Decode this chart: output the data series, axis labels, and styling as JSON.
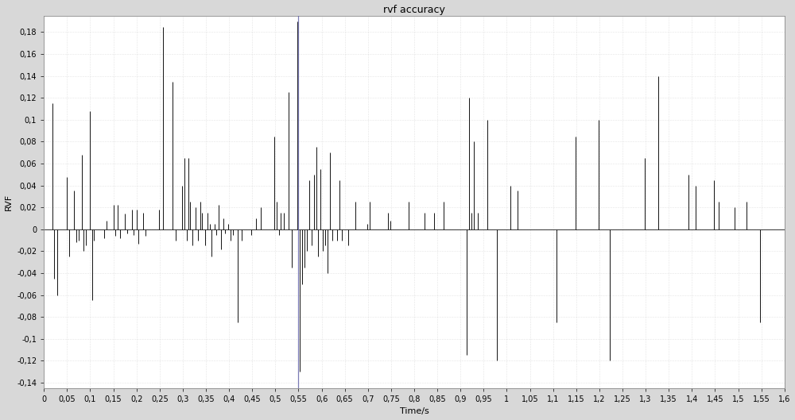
{
  "title": "rvf accuracy",
  "xlabel": "Time/s",
  "ylabel": "RVF",
  "xlim": [
    0,
    1.6
  ],
  "ylim": [
    -0.145,
    0.195
  ],
  "yticks": [
    -0.14,
    -0.12,
    -0.1,
    -0.08,
    -0.06,
    -0.04,
    -0.02,
    0,
    0.02,
    0.04,
    0.06,
    0.08,
    0.1,
    0.12,
    0.14,
    0.16,
    0.18
  ],
  "xticks": [
    0,
    0.05,
    0.1,
    0.15,
    0.2,
    0.25,
    0.3,
    0.35,
    0.4,
    0.45,
    0.5,
    0.55,
    0.6,
    0.65,
    0.7,
    0.75,
    0.8,
    0.85,
    0.9,
    0.95,
    1.0,
    1.05,
    1.1,
    1.15,
    1.2,
    1.25,
    1.3,
    1.35,
    1.4,
    1.45,
    1.5,
    1.55,
    1.6
  ],
  "vline_x": 0.55,
  "vline_color": "#6666aa",
  "line_color": "#111111",
  "bg_color": "#ffffff",
  "outer_bg": "#d8d8d8",
  "grid_color": "#cccccc",
  "title_fontsize": 9,
  "label_fontsize": 8,
  "tick_fontsize": 7,
  "spikes": [
    [
      0.018,
      0.115
    ],
    [
      0.022,
      -0.045
    ],
    [
      0.028,
      -0.06
    ],
    [
      0.05,
      0.048
    ],
    [
      0.055,
      -0.025
    ],
    [
      0.065,
      0.035
    ],
    [
      0.07,
      -0.012
    ],
    [
      0.075,
      -0.01
    ],
    [
      0.082,
      0.068
    ],
    [
      0.086,
      -0.02
    ],
    [
      0.09,
      -0.015
    ],
    [
      0.1,
      0.108
    ],
    [
      0.104,
      -0.065
    ],
    [
      0.108,
      -0.01
    ],
    [
      0.13,
      -0.008
    ],
    [
      0.135,
      0.008
    ],
    [
      0.15,
      0.022
    ],
    [
      0.154,
      -0.006
    ],
    [
      0.16,
      0.022
    ],
    [
      0.164,
      -0.008
    ],
    [
      0.175,
      0.014
    ],
    [
      0.18,
      -0.004
    ],
    [
      0.19,
      0.018
    ],
    [
      0.194,
      -0.005
    ],
    [
      0.2,
      0.018
    ],
    [
      0.204,
      -0.013
    ],
    [
      0.215,
      0.015
    ],
    [
      0.22,
      -0.006
    ],
    [
      0.248,
      0.018
    ],
    [
      0.258,
      0.185
    ],
    [
      0.278,
      0.135
    ],
    [
      0.284,
      -0.01
    ],
    [
      0.298,
      0.04
    ],
    [
      0.304,
      0.065
    ],
    [
      0.308,
      -0.01
    ],
    [
      0.312,
      0.065
    ],
    [
      0.316,
      0.025
    ],
    [
      0.32,
      -0.015
    ],
    [
      0.328,
      0.02
    ],
    [
      0.332,
      -0.01
    ],
    [
      0.338,
      0.025
    ],
    [
      0.342,
      0.015
    ],
    [
      0.348,
      -0.015
    ],
    [
      0.354,
      0.015
    ],
    [
      0.358,
      0.005
    ],
    [
      0.362,
      -0.025
    ],
    [
      0.368,
      0.005
    ],
    [
      0.372,
      -0.005
    ],
    [
      0.378,
      0.022
    ],
    [
      0.382,
      -0.018
    ],
    [
      0.388,
      0.01
    ],
    [
      0.392,
      -0.004
    ],
    [
      0.398,
      0.005
    ],
    [
      0.404,
      -0.01
    ],
    [
      0.408,
      -0.005
    ],
    [
      0.418,
      -0.085
    ],
    [
      0.428,
      -0.01
    ],
    [
      0.448,
      -0.005
    ],
    [
      0.458,
      0.01
    ],
    [
      0.468,
      0.02
    ],
    [
      0.498,
      0.085
    ],
    [
      0.503,
      0.025
    ],
    [
      0.508,
      -0.005
    ],
    [
      0.512,
      0.015
    ],
    [
      0.518,
      0.015
    ],
    [
      0.528,
      0.125
    ],
    [
      0.536,
      -0.035
    ],
    [
      0.548,
      0.19
    ],
    [
      0.553,
      -0.13
    ],
    [
      0.558,
      -0.05
    ],
    [
      0.563,
      -0.035
    ],
    [
      0.568,
      -0.02
    ],
    [
      0.573,
      0.045
    ],
    [
      0.578,
      -0.015
    ],
    [
      0.583,
      0.05
    ],
    [
      0.588,
      0.075
    ],
    [
      0.593,
      -0.025
    ],
    [
      0.598,
      0.055
    ],
    [
      0.603,
      -0.02
    ],
    [
      0.608,
      -0.015
    ],
    [
      0.613,
      -0.04
    ],
    [
      0.618,
      0.07
    ],
    [
      0.623,
      -0.01
    ],
    [
      0.633,
      -0.01
    ],
    [
      0.638,
      0.045
    ],
    [
      0.643,
      -0.01
    ],
    [
      0.658,
      -0.015
    ],
    [
      0.673,
      0.025
    ],
    [
      0.698,
      0.005
    ],
    [
      0.703,
      0.025
    ],
    [
      0.743,
      0.015
    ],
    [
      0.748,
      0.008
    ],
    [
      0.788,
      0.025
    ],
    [
      0.823,
      0.015
    ],
    [
      0.843,
      0.015
    ],
    [
      0.863,
      0.025
    ],
    [
      0.913,
      -0.115
    ],
    [
      0.918,
      0.12
    ],
    [
      0.923,
      0.015
    ],
    [
      0.928,
      0.08
    ],
    [
      0.938,
      0.015
    ],
    [
      0.958,
      0.1
    ],
    [
      0.978,
      -0.12
    ],
    [
      1.008,
      0.04
    ],
    [
      1.023,
      0.035
    ],
    [
      1.108,
      -0.085
    ],
    [
      1.148,
      0.085
    ],
    [
      1.198,
      0.1
    ],
    [
      1.223,
      -0.12
    ],
    [
      1.298,
      0.065
    ],
    [
      1.328,
      0.14
    ],
    [
      1.393,
      0.05
    ],
    [
      1.408,
      0.04
    ],
    [
      1.448,
      0.045
    ],
    [
      1.458,
      0.025
    ],
    [
      1.493,
      0.02
    ],
    [
      1.518,
      0.025
    ],
    [
      1.548,
      -0.085
    ]
  ]
}
